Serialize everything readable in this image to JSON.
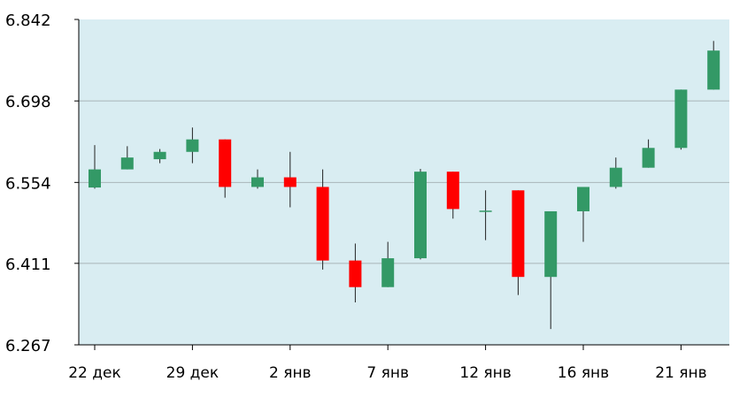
{
  "chart_data": {
    "type": "candlestick",
    "title": "",
    "xlabel": "",
    "ylabel": "",
    "ylim": [
      6.267,
      6.842
    ],
    "y_ticks": [
      "6.842",
      "6.698",
      "6.554",
      "6.411",
      "6.267"
    ],
    "x_ticks": [
      {
        "index": 0,
        "label": "22 дек"
      },
      {
        "index": 3,
        "label": "29 дек"
      },
      {
        "index": 6,
        "label": "2 янв"
      },
      {
        "index": 9,
        "label": "7 янв"
      },
      {
        "index": 12,
        "label": "12 янв"
      },
      {
        "index": 15,
        "label": "16 янв"
      },
      {
        "index": 18,
        "label": "21 янв"
      }
    ],
    "grid": true,
    "colors": {
      "up": "#339966",
      "down": "#ff0000",
      "background": "#d9edf2",
      "grid": "#a9b4b9"
    },
    "candles": [
      {
        "o": 6.545,
        "h": 6.62,
        "l": 6.543,
        "c": 6.577
      },
      {
        "o": 6.577,
        "h": 6.618,
        "l": 6.577,
        "c": 6.598
      },
      {
        "o": 6.595,
        "h": 6.613,
        "l": 6.588,
        "c": 6.608
      },
      {
        "o": 6.608,
        "h": 6.651,
        "l": 6.588,
        "c": 6.63
      },
      {
        "o": 6.63,
        "h": 6.63,
        "l": 6.527,
        "c": 6.546
      },
      {
        "o": 6.546,
        "h": 6.577,
        "l": 6.543,
        "c": 6.563
      },
      {
        "o": 6.563,
        "h": 6.608,
        "l": 6.51,
        "c": 6.546
      },
      {
        "o": 6.546,
        "h": 6.577,
        "l": 6.4,
        "c": 6.416
      },
      {
        "o": 6.416,
        "h": 6.446,
        "l": 6.342,
        "c": 6.369
      },
      {
        "o": 6.369,
        "h": 6.449,
        "l": 6.369,
        "c": 6.42
      },
      {
        "o": 6.42,
        "h": 6.578,
        "l": 6.418,
        "c": 6.573
      },
      {
        "o": 6.573,
        "h": 6.573,
        "l": 6.49,
        "c": 6.507
      },
      {
        "o": 6.503,
        "h": 6.54,
        "l": 6.452,
        "c": 6.503
      },
      {
        "o": 6.54,
        "h": 6.54,
        "l": 6.355,
        "c": 6.387
      },
      {
        "o": 6.387,
        "h": 6.503,
        "l": 6.295,
        "c": 6.503
      },
      {
        "o": 6.503,
        "h": 6.546,
        "l": 6.449,
        "c": 6.546
      },
      {
        "o": 6.546,
        "h": 6.598,
        "l": 6.543,
        "c": 6.58
      },
      {
        "o": 6.58,
        "h": 6.63,
        "l": 6.58,
        "c": 6.615
      },
      {
        "o": 6.615,
        "h": 6.718,
        "l": 6.612,
        "c": 6.718
      },
      {
        "o": 6.718,
        "h": 6.804,
        "l": 6.718,
        "c": 6.787
      }
    ]
  }
}
